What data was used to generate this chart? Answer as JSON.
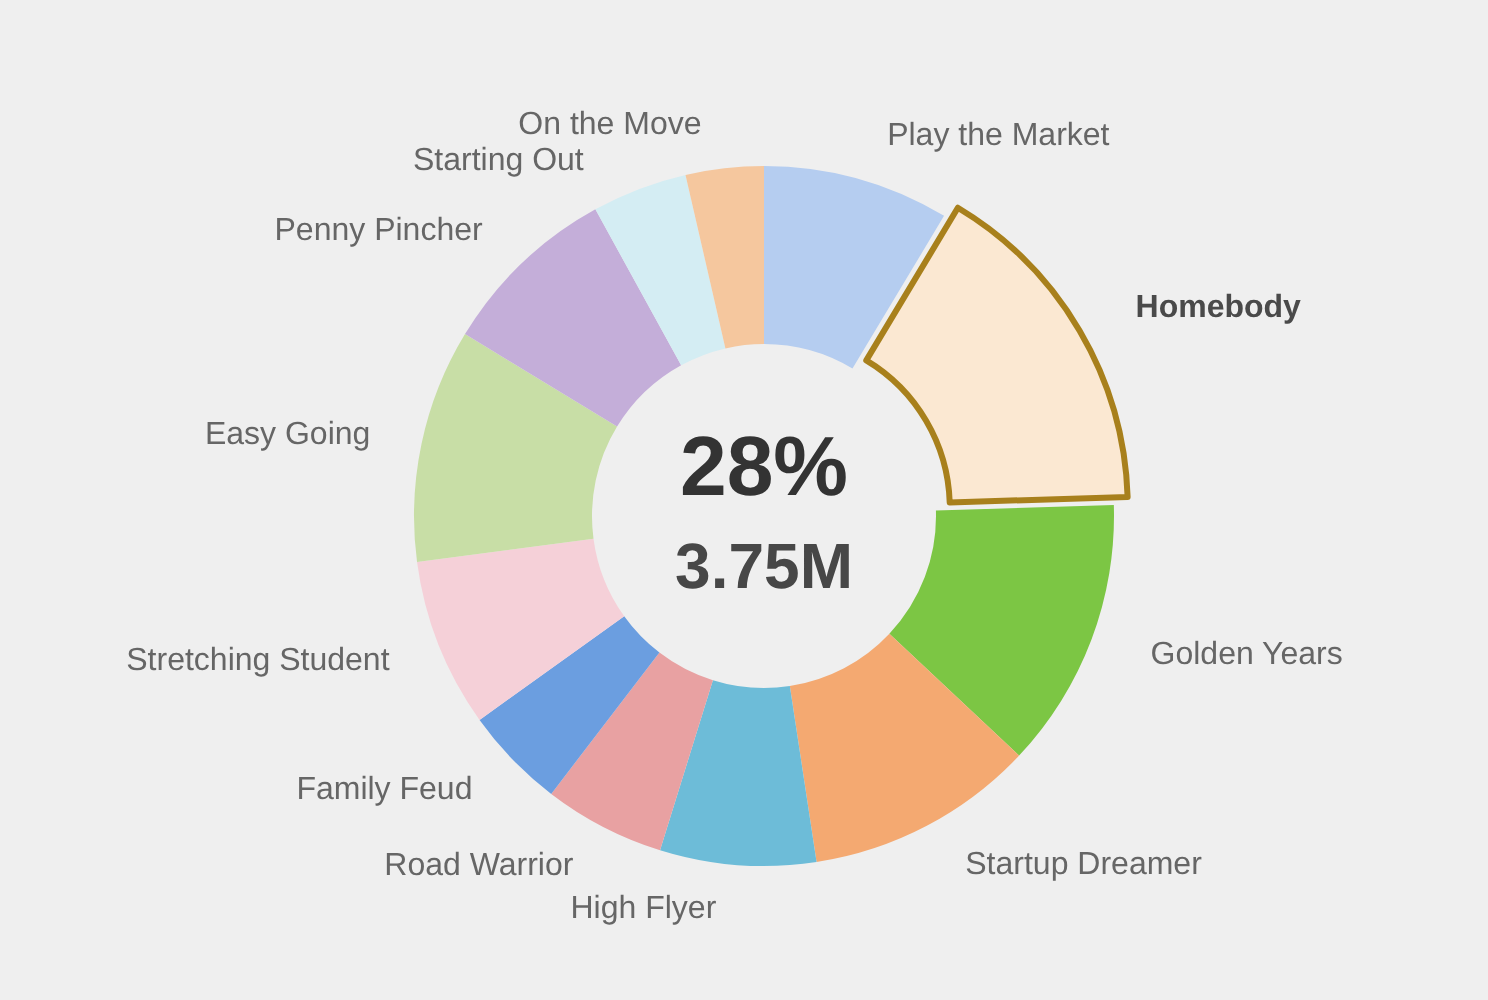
{
  "chart_data": {
    "type": "donut",
    "categories": [
      "Play the Market",
      "Homebody",
      "Golden Years",
      "Startup Dreamer",
      "High Flyer",
      "Road Warrior",
      "Family Feud",
      "Stretching Student",
      "Easy Going",
      "Penny Pincher",
      "Starting Out",
      "On the Move"
    ],
    "values": [
      8.6,
      15.9,
      12.5,
      10.6,
      7.2,
      5.6,
      4.7,
      7.8,
      10.8,
      8.3,
      4.4,
      3.6
    ],
    "colors": [
      "#b5cdf0",
      "#fbe8d2",
      "#7cc644",
      "#f4a971",
      "#6dbcd8",
      "#e8a1a2",
      "#6b9ee0",
      "#f5d0d8",
      "#c8dea6",
      "#c4aed9",
      "#d4edf3",
      "#f5c79e"
    ],
    "annotations": [
      {
        "text": "28%",
        "x": "Homebody"
      },
      {
        "text": "3.75M",
        "x": "Homebody"
      }
    ]
  }
}
